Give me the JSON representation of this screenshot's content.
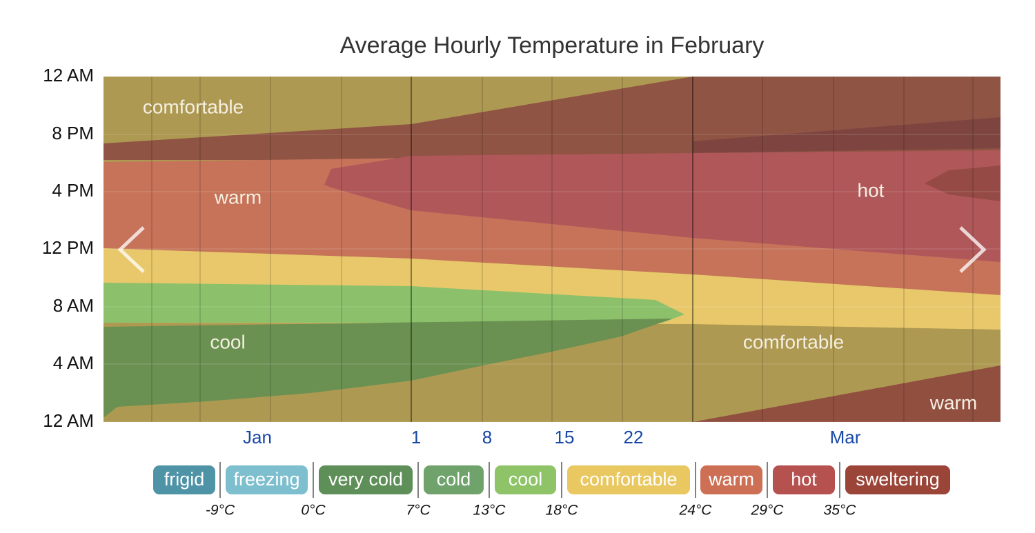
{
  "title": "Average Hourly Temperature in February",
  "y_labels": [
    "12 AM",
    "8 PM",
    "4 PM",
    "12 PM",
    "8 AM",
    "4 AM",
    "12 AM"
  ],
  "x_labels": [
    "Jan",
    "1",
    "8",
    "15",
    "22",
    "Mar"
  ],
  "region_labels": [
    "comfortable",
    "warm",
    "hot",
    "cool",
    "comfortable",
    "warm"
  ],
  "legend": [
    {
      "label": "frigid",
      "color": "#4e93a6"
    },
    {
      "label": "freezing",
      "color": "#7dbfce"
    },
    {
      "label": "very cold",
      "color": "#5e8f58"
    },
    {
      "label": "cold",
      "color": "#6fa36b"
    },
    {
      "label": "cool",
      "color": "#8ec467"
    },
    {
      "label": "comfortable",
      "color": "#e9c862"
    },
    {
      "label": "warm",
      "color": "#cd6f55"
    },
    {
      "label": "hot",
      "color": "#b5514f"
    },
    {
      "label": "sweltering",
      "color": "#9b4539"
    }
  ],
  "thresholds": [
    "-9°C",
    "0°C",
    "7°C",
    "13°C",
    "18°C",
    "24°C",
    "29°C",
    "35°C"
  ]
}
